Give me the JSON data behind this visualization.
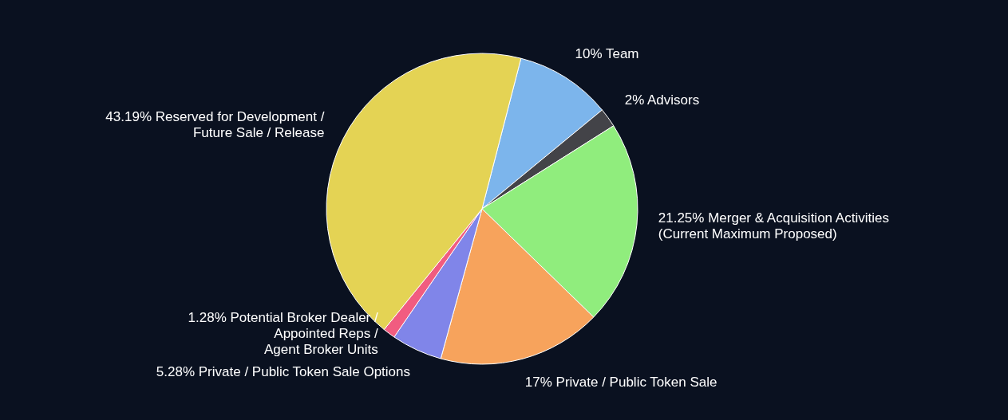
{
  "chart_data": {
    "type": "pie",
    "categories": [
      "Team",
      "Advisors",
      "Merger & Acquisition Activities\n(Current Maximum Proposed)",
      "Private / Public Token Sale",
      "Private / Public Token Sale Options",
      "Potential Broker Dealer /\nAppointed Reps /\nAgent Broker Units",
      "Reserved for Development /\nFuture Sale / Release"
    ],
    "values": [
      10,
      2,
      21.25,
      17,
      5.28,
      1.28,
      43.19
    ],
    "value_labels": [
      "10%",
      "2%",
      "21.25%",
      "17%",
      "5.28%",
      "1.28%",
      "43.19%"
    ],
    "colors": [
      "#7cb5ec",
      "#434348",
      "#90ed7d",
      "#f7a35c",
      "#8085e9",
      "#f15c80",
      "#e4d354"
    ]
  }
}
